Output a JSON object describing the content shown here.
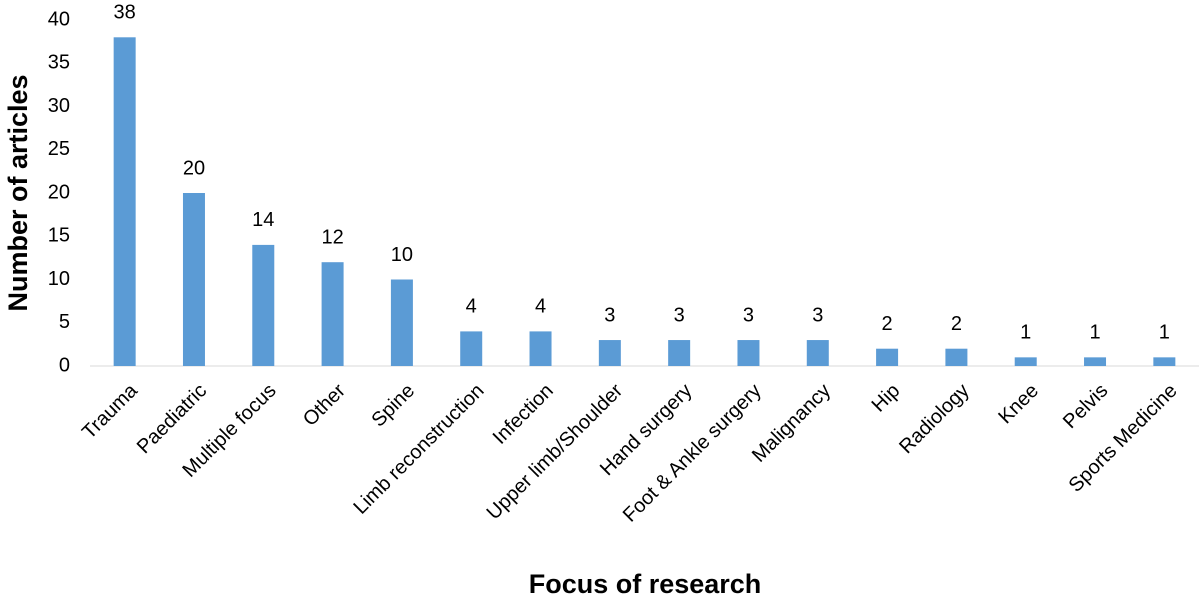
{
  "chart_data": {
    "type": "bar",
    "x_label": "Focus of research",
    "y_label": "Number of articles",
    "categories": [
      "Trauma",
      "Paediatric",
      "Multiple focus",
      "Other",
      "Spine",
      "Limb reconstruction",
      "Infection",
      "Upper limb/Shoulder",
      "Hand surgery",
      "Foot & Ankle surgery",
      "Malignancy",
      "Hip",
      "Radiology",
      "Knee",
      "Pelvis",
      "Sports Medicine"
    ],
    "values": [
      38,
      20,
      14,
      12,
      10,
      4,
      4,
      3,
      3,
      3,
      3,
      2,
      2,
      1,
      1,
      1
    ],
    "color": "#5b9bd5",
    "ylim": [
      0,
      40
    ],
    "yticks": [
      0,
      5,
      10,
      15,
      20,
      25,
      30,
      35,
      40
    ],
    "grid": false
  }
}
